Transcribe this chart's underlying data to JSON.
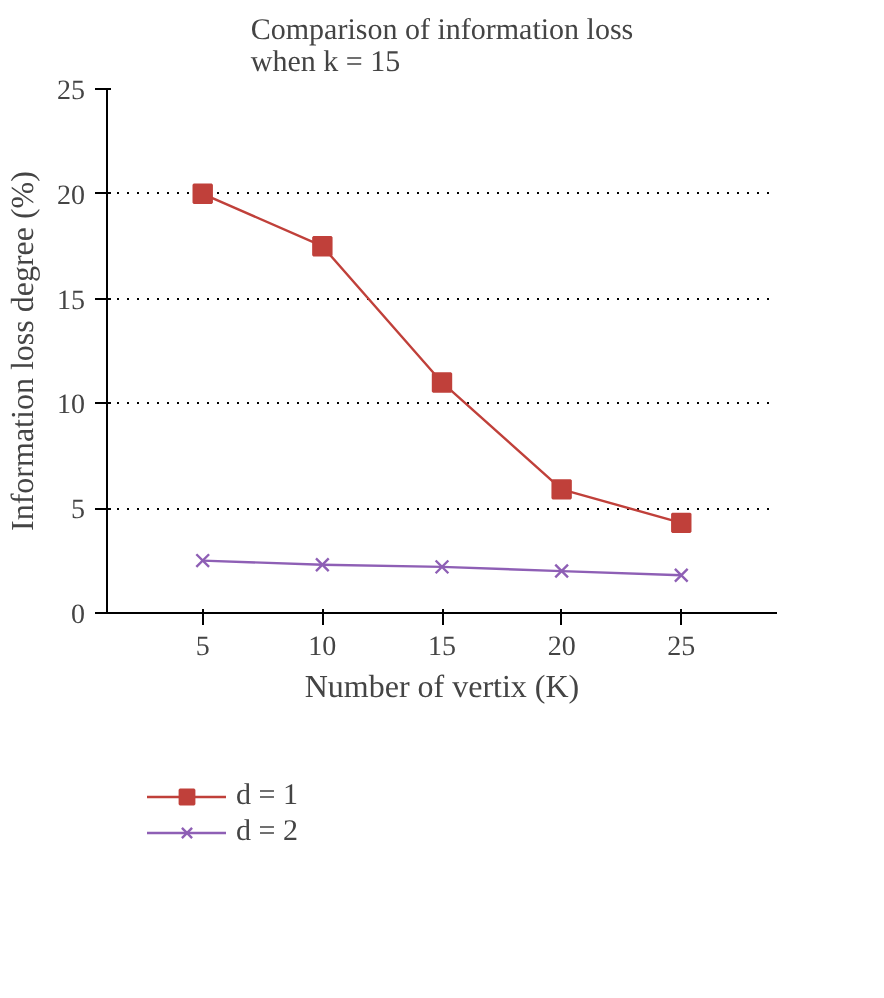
{
  "chart_data": {
    "type": "line",
    "title": "Comparison of information loss\nwhen k = 15",
    "xlabel": "Number of vertix (K)",
    "ylabel": "Information loss degree (%)",
    "x": [
      5,
      10,
      15,
      20,
      25
    ],
    "xlim": [
      1,
      29
    ],
    "xticks": [
      5,
      10,
      15,
      20,
      25
    ],
    "ylim": [
      0,
      25
    ],
    "yticks": [
      0,
      5,
      10,
      15,
      20,
      25
    ],
    "grid": "y",
    "legend": "bottom",
    "line_style": "solid",
    "series": [
      {
        "name": "d = 1",
        "color": "#c0403a",
        "marker": "square",
        "values": [
          20,
          17.5,
          11,
          5.9,
          4.3
        ]
      },
      {
        "name": "d = 2",
        "color": "#8e5fb5",
        "marker": "cross",
        "values": [
          2.5,
          2.3,
          2.2,
          2.0,
          1.8
        ]
      }
    ]
  }
}
